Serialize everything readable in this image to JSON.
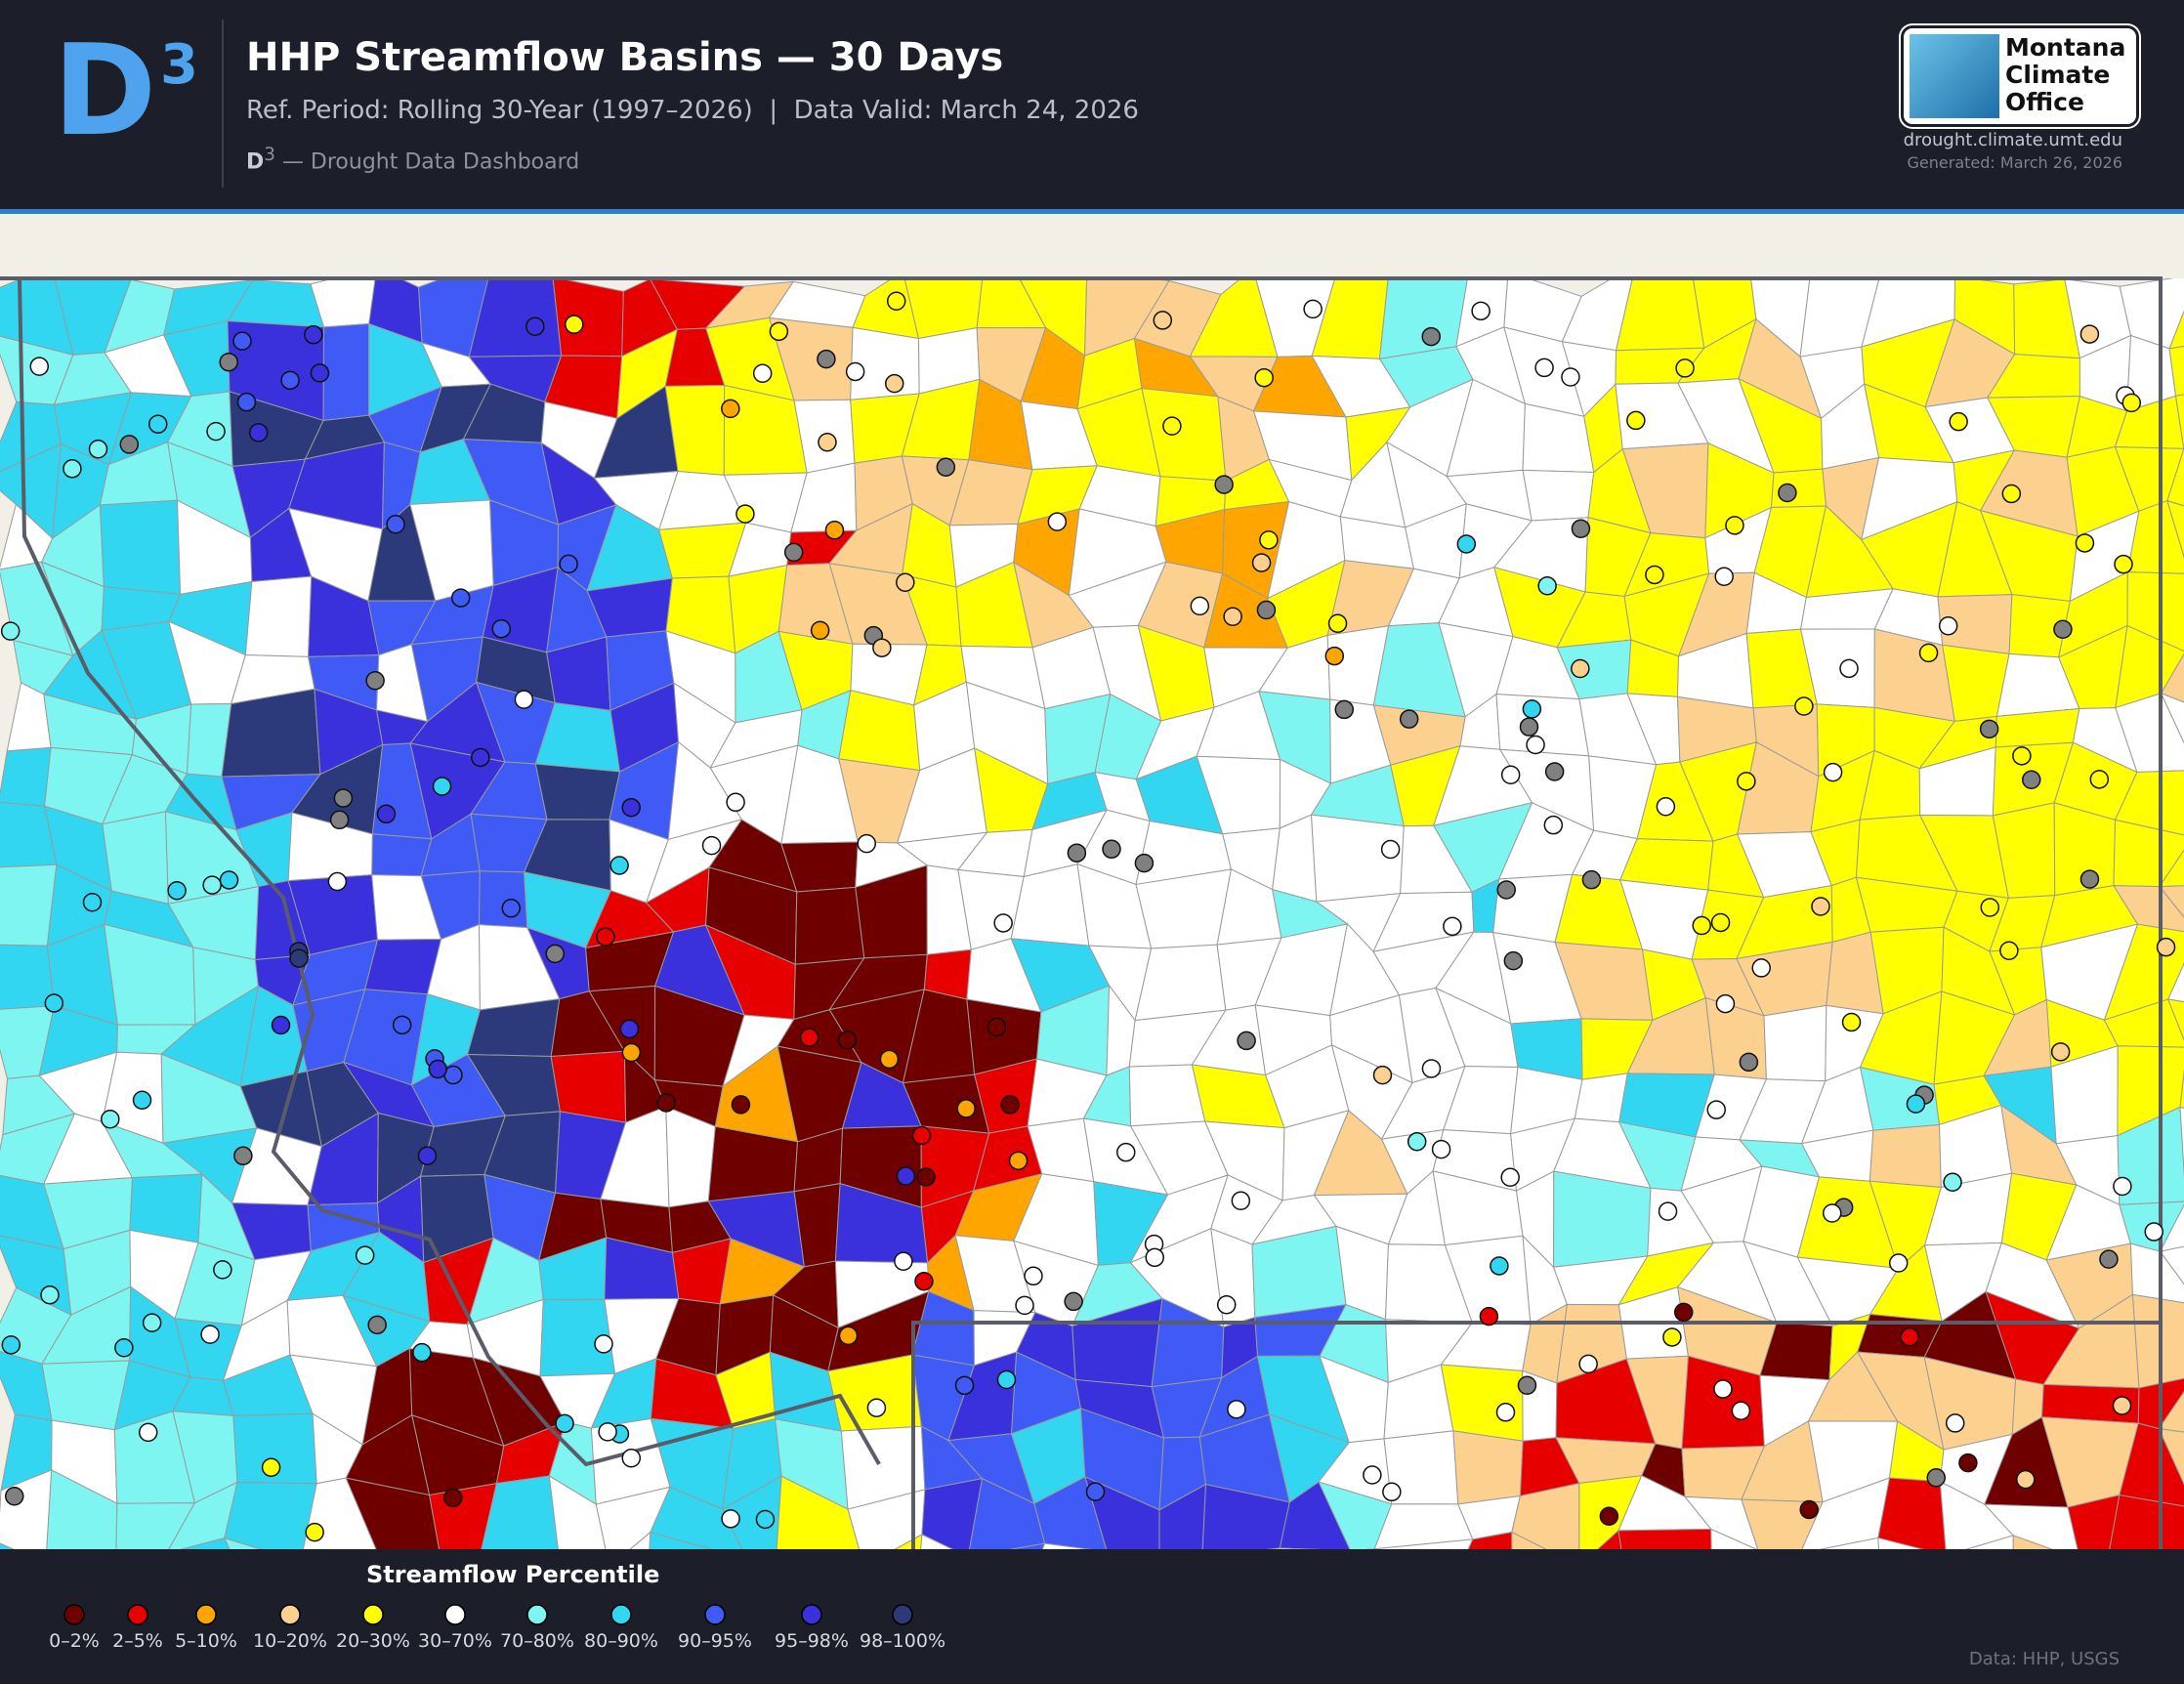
{
  "header": {
    "logo": {
      "letter": "D",
      "sup": "3"
    },
    "title": "HHP Streamflow Basins — 30 Days",
    "subtitle": "Ref. Period: Rolling 30-Year (1997–2026)  |  Data Valid: March 24, 2026",
    "dashboard": {
      "sup": "3",
      "letter": "D",
      "text": "— Drought Data Dashboard"
    },
    "partner": {
      "lines": [
        "Montana",
        "Climate",
        "Office"
      ]
    },
    "url": "drought.climate.umt.edu",
    "generated": "Generated: March 26, 2026"
  },
  "legend": {
    "title": "Streamflow Percentile",
    "items": [
      {
        "label": "0–2%",
        "color": "#6e0000"
      },
      {
        "label": "2–5%",
        "color": "#e60000"
      },
      {
        "label": "5–10%",
        "color": "#ffa500"
      },
      {
        "label": "10–20%",
        "color": "#fcd08e"
      },
      {
        "label": "20–30%",
        "color": "#ffff00"
      },
      {
        "label": "30–70%",
        "color": "#ffffff"
      },
      {
        "label": "70–80%",
        "color": "#7ff5f2"
      },
      {
        "label": "80–90%",
        "color": "#33d6f0"
      },
      {
        "label": "90–95%",
        "color": "#3f5af5"
      },
      {
        "label": "95–98%",
        "color": "#3a30dc"
      },
      {
        "label": "98–100%",
        "color": "#2c3a7c"
      }
    ]
  },
  "source": "Data: HHP, USGS"
}
